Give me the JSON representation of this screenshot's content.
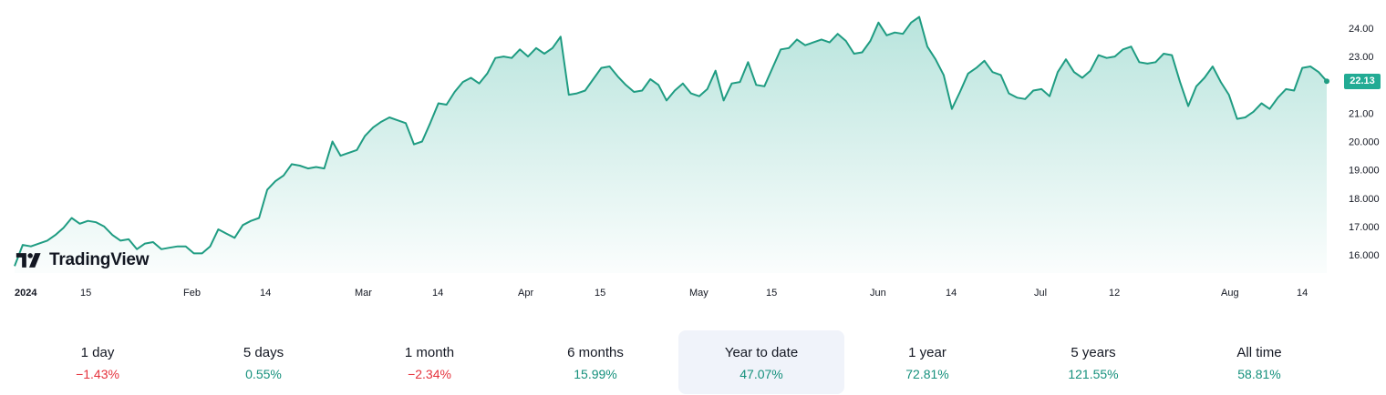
{
  "brand": {
    "name": "TradingView"
  },
  "colors": {
    "line": "#1f9c82",
    "fill": "#22ab94",
    "positive": "#15907c",
    "negative": "#e5323c",
    "active_bg": "#f0f3fa"
  },
  "chart_data": {
    "type": "area",
    "x_tick_labels": [
      "2024",
      "15",
      "Feb",
      "14",
      "Mar",
      "14",
      "Apr",
      "15",
      "May",
      "15",
      "Jun",
      "14",
      "Jul",
      "12",
      "Aug",
      "14"
    ],
    "y_tick_labels": [
      "24.00",
      "23.00",
      "22.00",
      "21.00",
      "20.000",
      "19.000",
      "18.000",
      "17.000",
      "16.000"
    ],
    "ylim": [
      15.5,
      24.3
    ],
    "last_price": "22.13",
    "series": [
      {
        "values": [
          15.6,
          16.35,
          16.3,
          16.4,
          16.5,
          16.7,
          16.95,
          17.3,
          17.1,
          17.2,
          17.15,
          17.0,
          16.7,
          16.5,
          16.55,
          16.2,
          16.4,
          16.45,
          16.2,
          16.25,
          16.3,
          16.3,
          16.05,
          16.05,
          16.3,
          16.9,
          16.75,
          16.6,
          17.05,
          17.2,
          17.3,
          18.3,
          18.6,
          18.8,
          19.2,
          19.15,
          19.05,
          19.1,
          19.05,
          20.0,
          19.5,
          19.6,
          19.7,
          20.2,
          20.5,
          20.7,
          20.85,
          20.75,
          20.65,
          19.9,
          20.0,
          20.65,
          21.35,
          21.3,
          21.75,
          22.1,
          22.25,
          22.05,
          22.4,
          22.95,
          23.0,
          22.95,
          23.25,
          23.0,
          23.3,
          23.1,
          23.3,
          23.7,
          21.65,
          21.7,
          21.8,
          22.2,
          22.6,
          22.65,
          22.3,
          22.0,
          21.75,
          21.8,
          22.2,
          22.0,
          21.45,
          21.8,
          22.05,
          21.7,
          21.6,
          21.85,
          22.5,
          21.45,
          22.05,
          22.1,
          22.8,
          22.0,
          21.95,
          22.6,
          23.25,
          23.3,
          23.6,
          23.4,
          23.5,
          23.6,
          23.5,
          23.8,
          23.55,
          23.1,
          23.15,
          23.55,
          24.2,
          23.75,
          23.85,
          23.8,
          24.2,
          24.4,
          23.35,
          22.9,
          22.35,
          21.15,
          21.75,
          22.4,
          22.6,
          22.85,
          22.45,
          22.35,
          21.7,
          21.55,
          21.5,
          21.8,
          21.85,
          21.6,
          22.45,
          22.9,
          22.45,
          22.25,
          22.5,
          23.05,
          22.95,
          23.0,
          23.25,
          23.35,
          22.8,
          22.75,
          22.8,
          23.1,
          23.05,
          22.1,
          21.25,
          21.95,
          22.25,
          22.65,
          22.1,
          21.65,
          20.8,
          20.85,
          21.05,
          21.35,
          21.15,
          21.55,
          21.85,
          21.8,
          22.6,
          22.65,
          22.45,
          22.13
        ]
      }
    ]
  },
  "periods": [
    {
      "label": "1 day",
      "value": "−1.43%",
      "direction": "down"
    },
    {
      "label": "5 days",
      "value": "0.55%",
      "direction": "up"
    },
    {
      "label": "1 month",
      "value": "−2.34%",
      "direction": "down"
    },
    {
      "label": "6 months",
      "value": "15.99%",
      "direction": "up"
    },
    {
      "label": "Year to date",
      "value": "47.07%",
      "direction": "up",
      "active": true
    },
    {
      "label": "1 year",
      "value": "72.81%",
      "direction": "up"
    },
    {
      "label": "5 years",
      "value": "121.55%",
      "direction": "up"
    },
    {
      "label": "All time",
      "value": "58.81%",
      "direction": "up"
    }
  ]
}
